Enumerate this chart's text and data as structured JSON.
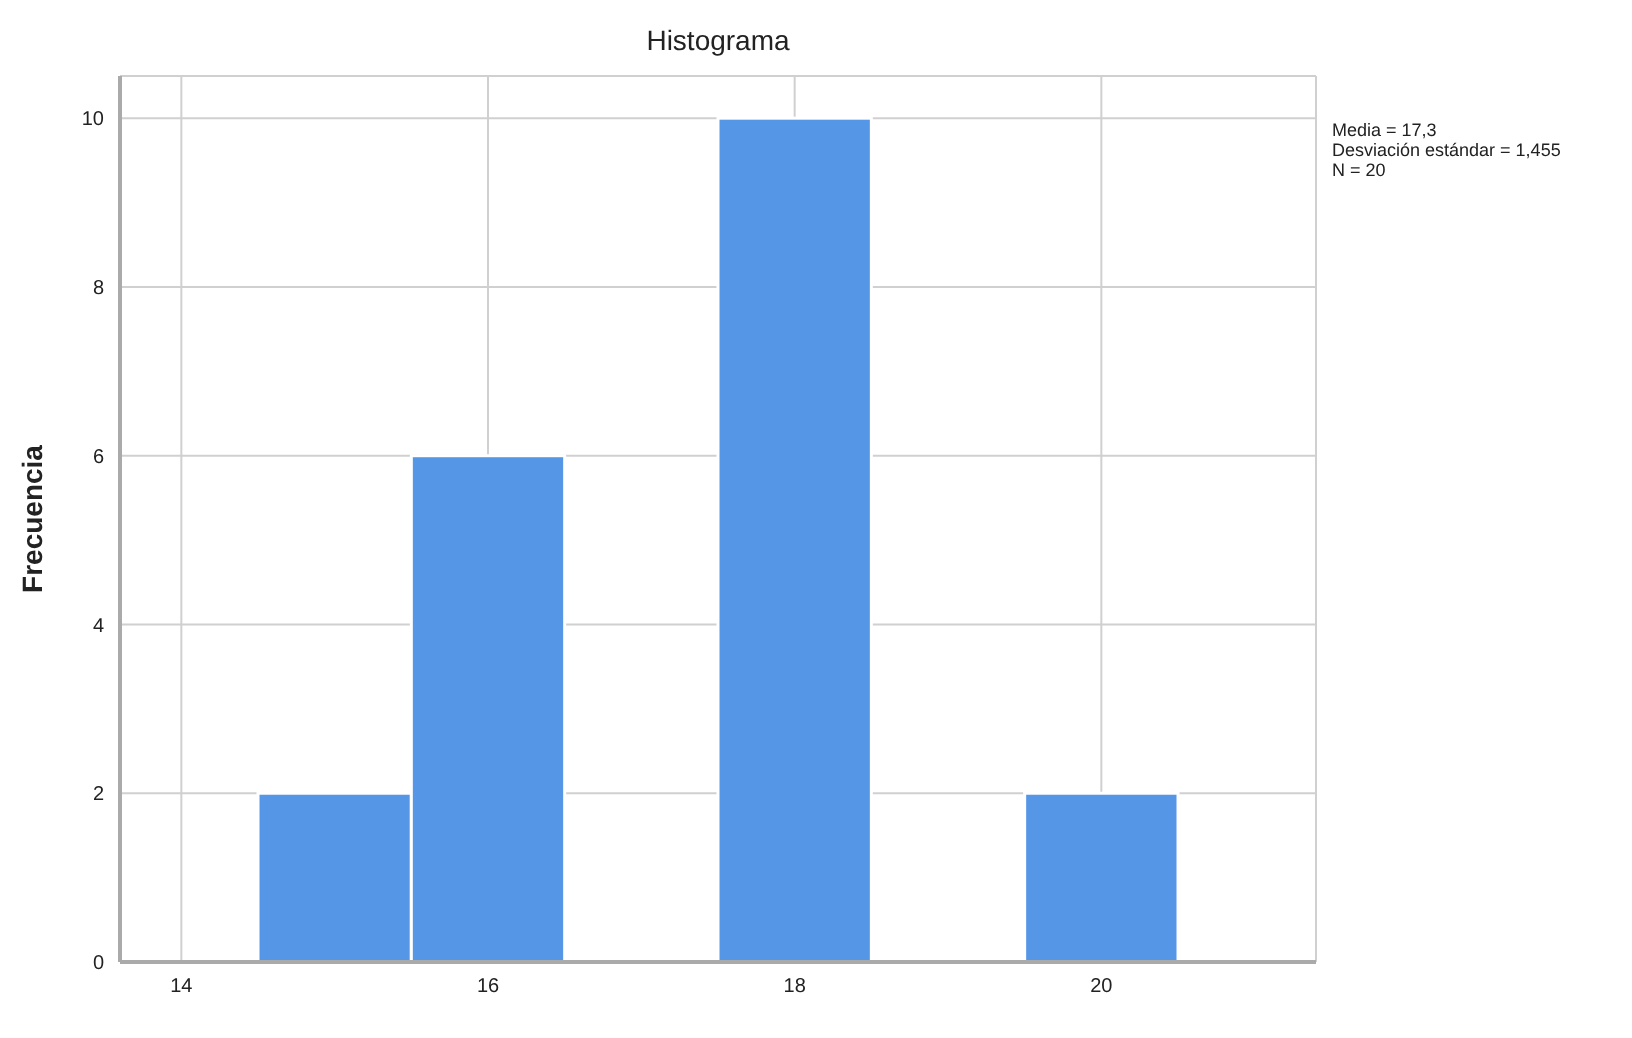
{
  "chart_data": {
    "type": "histogram",
    "title": "Histograma",
    "ylabel": "Frecuencia",
    "bins": [
      14.5,
      15.5,
      16.5,
      17.5,
      18.5,
      19.5,
      20.5
    ],
    "values": [
      2,
      6,
      0,
      10,
      0,
      2
    ],
    "color": "#5596e6",
    "xlim": [
      13.6,
      21.4
    ],
    "xticks": [
      14,
      16,
      18,
      20
    ],
    "ylim": [
      0,
      10.5
    ],
    "yticks": [
      0,
      2,
      4,
      6,
      8,
      10
    ],
    "grid": true,
    "annotations": [
      "Media = 17,3",
      "Desviación estándar = 1,455",
      "N = 20"
    ]
  }
}
